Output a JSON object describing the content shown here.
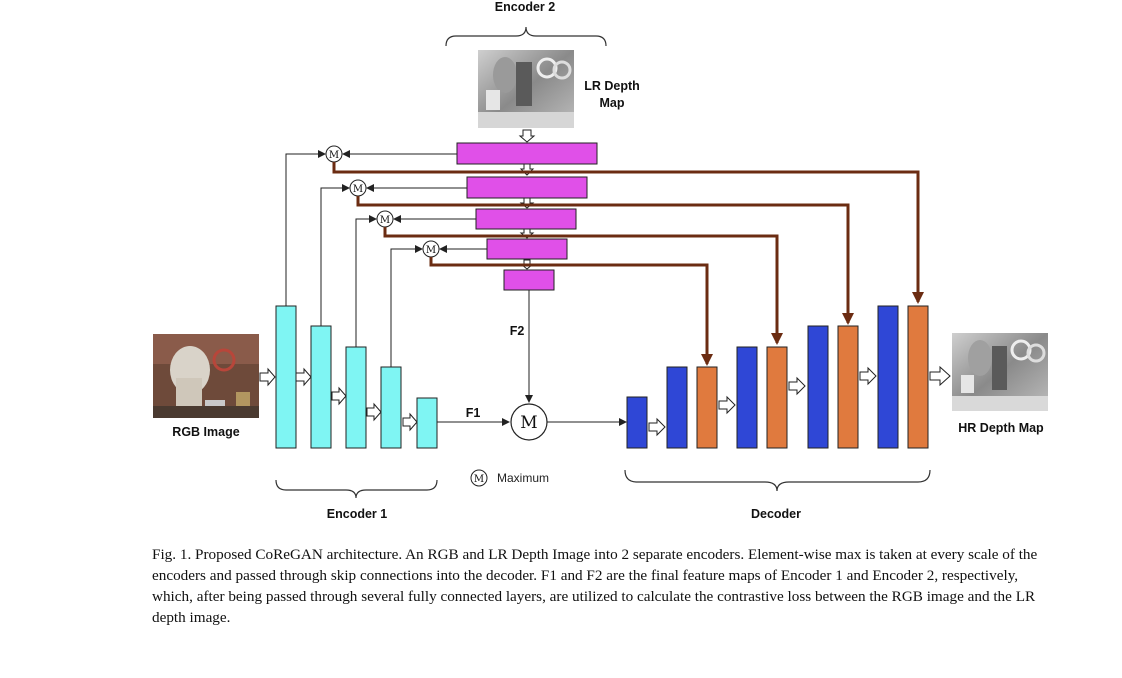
{
  "labels": {
    "encoder2": "Encoder 2",
    "lr_depth_line1": "LR Depth",
    "lr_depth_line2": "Map",
    "rgb_image": "RGB Image",
    "hr_depth_map": "HR Depth Map",
    "encoder1": "Encoder 1",
    "decoder": "Decoder",
    "f1": "F1",
    "f2": "F2",
    "maximum": "Maximum",
    "max_symbol": "M"
  },
  "colors": {
    "encoder1_block": "#7ff5f3",
    "encoder2_block": "#e050e8",
    "decoder_blue": "#2f47d6",
    "decoder_orange": "#e07a3e",
    "skip_arrow": "#6b2c12",
    "line": "#222222"
  },
  "caption": "Fig. 1.  Proposed CoReGAN architecture. An RGB and LR Depth Image into 2 separate encoders. Element-wise max is taken at every scale of the encoders and passed through skip connections into the decoder. F1 and F2 are the final feature maps of Encoder 1 and Encoder 2, respectively, which, after being passed through several fully connected layers, are utilized to calculate the contrastive loss between the RGB image and the LR depth image."
}
